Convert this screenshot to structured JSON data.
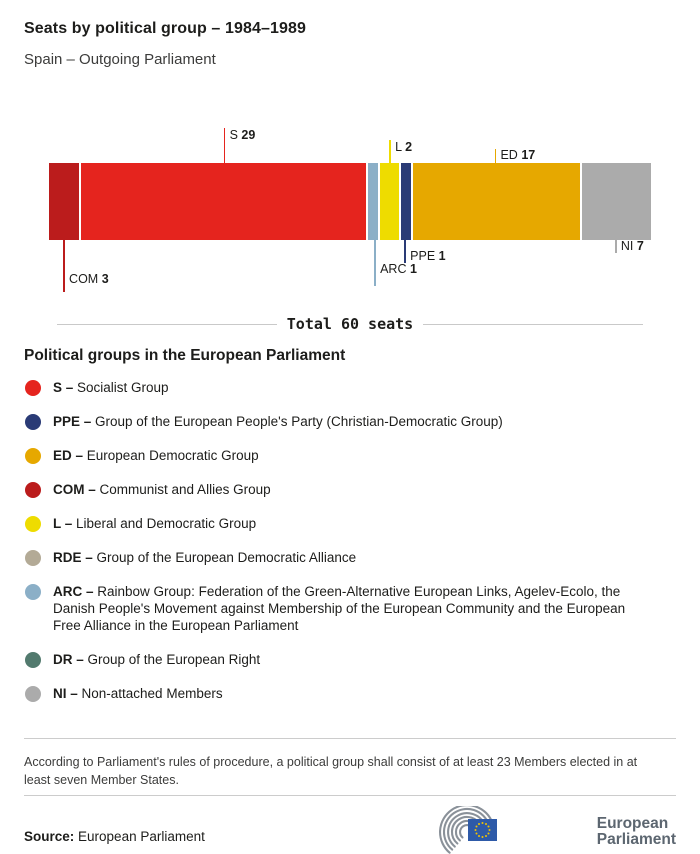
{
  "header": {
    "title": "Seats by political group – 1984–1989",
    "subtitle": "Spain – Outgoing Parliament"
  },
  "chart_data": {
    "type": "bar",
    "title": "Seats by political group – 1984–1989",
    "subtitle": "Spain – Outgoing Parliament",
    "total_label": "Total 60 seats",
    "total_seats": 60,
    "segments": [
      {
        "group": "COM",
        "seats": 3,
        "color": "#bb1c1c",
        "callout": {
          "side": "below",
          "tick_len": 52,
          "label_offset": 33
        }
      },
      {
        "group": "S",
        "seats": 29,
        "color": "#e5241e",
        "callout": {
          "side": "above",
          "tick_len": 35,
          "label_offset": 34
        }
      },
      {
        "group": "ARC",
        "seats": 1,
        "color": "#8bafc7",
        "callout": {
          "side": "below",
          "tick_len": 46,
          "label_offset": 23
        }
      },
      {
        "group": "L",
        "seats": 2,
        "color": "#eedc00",
        "callout": {
          "side": "above",
          "tick_len": 23,
          "label_offset": 22
        }
      },
      {
        "group": "PPE",
        "seats": 1,
        "color": "#2a3b76",
        "callout": {
          "side": "below",
          "tick_len": 23,
          "label_offset": 10
        }
      },
      {
        "group": "ED",
        "seats": 17,
        "color": "#e6a800",
        "callout": {
          "side": "above",
          "tick_len": 14,
          "label_offset": 14
        }
      },
      {
        "group": "NI",
        "seats": 7,
        "color": "#ababab",
        "callout": {
          "side": "below",
          "tick_len": 13,
          "label_offset": 0
        }
      }
    ]
  },
  "legend": {
    "title": "Political groups in the European Parliament",
    "items": [
      {
        "abbr": "S –",
        "name": "Socialist Group",
        "color": "#e5241e"
      },
      {
        "abbr": "PPE –",
        "name": "Group of the European People's Party (Christian-Democratic Group)",
        "color": "#2a3b76"
      },
      {
        "abbr": "ED –",
        "name": "European Democratic Group",
        "color": "#e6a800"
      },
      {
        "abbr": "COM –",
        "name": "Communist and Allies Group",
        "color": "#bb1c1c"
      },
      {
        "abbr": "L –",
        "name": "Liberal and Democratic Group",
        "color": "#eedc00"
      },
      {
        "abbr": "RDE –",
        "name": "Group of the European Democratic Alliance",
        "color": "#b3aa96"
      },
      {
        "abbr": "ARC –",
        "name": "Rainbow Group: Federation of the Green-Alternative European Links, Agelev-Ecolo, the Danish People's Movement against Membership of the European Community and the European Free Alliance in the European Parliament",
        "color": "#8bafc7"
      },
      {
        "abbr": "DR –",
        "name": "Group of the European Right",
        "color": "#527a6e"
      },
      {
        "abbr": "NI –",
        "name": "Non-attached Members",
        "color": "#ababab"
      }
    ]
  },
  "footnote": "According to Parliament's rules of procedure, a political group shall consist of at least 23 Members elected in at least seven Member States.",
  "source": {
    "label": "Source:",
    "value": "European Parliament"
  },
  "logo": {
    "line1": "European",
    "line2": "Parliament"
  }
}
